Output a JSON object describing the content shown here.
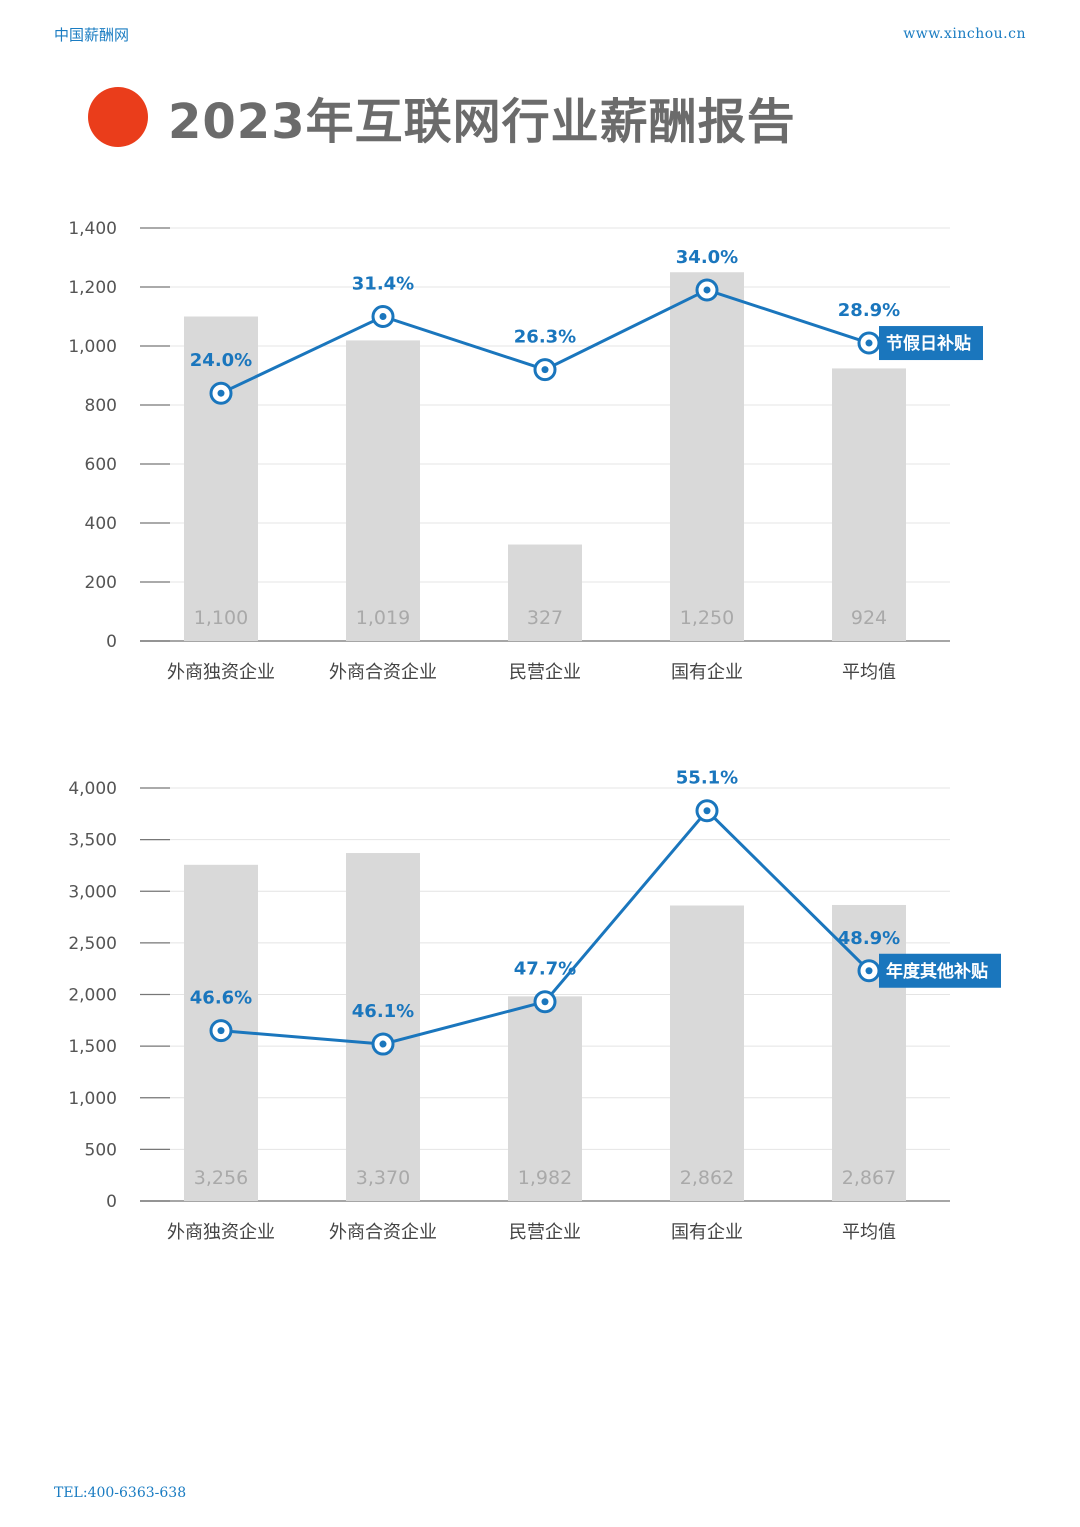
{
  "header": {
    "left_text": "中国薪酬网",
    "right_text": "www.xinchou.cn",
    "title": "2023年互联网行业薪酬报告"
  },
  "footer": {
    "tel": "TEL:400-6363-638"
  },
  "colors": {
    "bar": "#d9d9d9",
    "line": "#1a76bd",
    "accent_dot": "#ea3d1b",
    "grid": "#e4e4e4"
  },
  "chart_data": [
    {
      "type": "bar",
      "categories": [
        "外商独资企业",
        "外商合资企业",
        "民营企业",
        "国有企业",
        "平均值"
      ],
      "ylim": [
        0,
        1400
      ],
      "yticks": [
        0,
        200,
        400,
        600,
        800,
        1000,
        1200,
        1400
      ],
      "ytick_labels": [
        "0",
        "200",
        "400",
        "600",
        "800",
        "1,000",
        "1,200",
        "1,400"
      ],
      "bar_values": [
        1100,
        1019,
        327,
        1250,
        924
      ],
      "bar_labels": [
        "1,100",
        "1,019",
        "327",
        "1,250",
        "924"
      ],
      "line_series": {
        "name": "节假日补贴",
        "values": [
          840,
          1100,
          920,
          1190,
          1010
        ],
        "labels": [
          "24.0%",
          "31.4%",
          "26.3%",
          "34.0%",
          "28.9%"
        ]
      },
      "grid": true
    },
    {
      "type": "bar",
      "categories": [
        "外商独资企业",
        "外商合资企业",
        "民营企业",
        "国有企业",
        "平均值"
      ],
      "ylim": [
        0,
        4000
      ],
      "yticks": [
        0,
        500,
        1000,
        1500,
        2000,
        2500,
        3000,
        3500,
        4000
      ],
      "ytick_labels": [
        "0",
        "500",
        "1,000",
        "1,500",
        "2,000",
        "2,500",
        "3,000",
        "3,500",
        "4,000"
      ],
      "bar_values": [
        3256,
        3370,
        1982,
        2862,
        2867
      ],
      "bar_labels": [
        "3,256",
        "3,370",
        "1,982",
        "2,862",
        "2,867"
      ],
      "line_series": {
        "name": "年度其他补贴",
        "values": [
          1650,
          1520,
          1930,
          3780,
          2230
        ],
        "labels": [
          "46.6%",
          "46.1%",
          "47.7%",
          "55.1%",
          "48.9%"
        ]
      },
      "grid": true
    }
  ]
}
